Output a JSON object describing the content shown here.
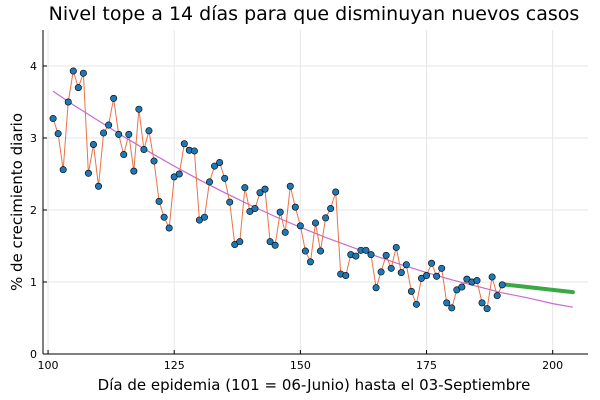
{
  "chart_data": {
    "type": "scatter",
    "title": "Nivel tope a 14 días para que disminuyan nuevos casos",
    "xlabel": "Día de epidemia (101 = 06-Junio) hasta el 03-Septiembre",
    "ylabel": "% de crecimiento diario",
    "xlim": [
      99,
      207
    ],
    "ylim": [
      0,
      4.5
    ],
    "xticks": [
      100,
      125,
      150,
      175,
      200
    ],
    "yticks": [
      0,
      1,
      2,
      3,
      4
    ],
    "grid": true,
    "legend": "none",
    "colors": {
      "points": "#1f77b4",
      "connecting_line": "#e8734a",
      "trend": "#c86ad0",
      "projection": "#3aa845"
    },
    "series": [
      {
        "kind": "observed",
        "x": [
          101,
          102,
          103,
          104,
          105,
          106,
          107,
          108,
          109,
          110,
          111,
          112,
          113,
          114,
          115,
          116,
          117,
          118,
          119,
          120,
          121,
          122,
          123,
          124,
          125,
          126,
          127,
          128,
          129,
          130,
          131,
          132,
          133,
          134,
          135,
          136,
          137,
          138,
          139,
          140,
          141,
          142,
          143,
          144,
          145,
          146,
          147,
          148,
          149,
          150,
          151,
          152,
          153,
          154,
          155,
          156,
          157,
          158,
          159,
          160,
          161,
          162,
          163,
          164,
          165,
          166,
          167,
          168,
          169,
          170,
          171,
          172,
          173,
          174,
          175,
          176,
          177,
          178,
          179,
          180,
          181,
          182,
          183,
          184,
          185,
          186,
          187,
          188,
          189,
          190
        ],
        "y": [
          3.27,
          3.06,
          2.56,
          3.5,
          3.93,
          3.7,
          3.9,
          2.51,
          2.91,
          2.33,
          3.07,
          3.18,
          3.55,
          3.05,
          2.77,
          3.05,
          2.54,
          3.4,
          2.84,
          3.1,
          2.68,
          2.12,
          1.9,
          1.75,
          2.46,
          2.5,
          2.92,
          2.83,
          2.82,
          1.86,
          1.9,
          2.39,
          2.61,
          2.66,
          2.44,
          2.11,
          1.52,
          1.56,
          2.31,
          1.98,
          2.02,
          2.24,
          2.29,
          1.56,
          1.51,
          1.97,
          1.69,
          2.33,
          2.04,
          1.78,
          1.43,
          1.28,
          1.82,
          1.43,
          1.89,
          2.02,
          2.25,
          1.11,
          1.09,
          1.38,
          1.36,
          1.44,
          1.44,
          1.38,
          0.92,
          1.14,
          1.37,
          1.19,
          1.48,
          1.13,
          1.24,
          0.87,
          0.69,
          1.05,
          1.09,
          1.26,
          1.08,
          1.19,
          0.71,
          0.64,
          0.89,
          0.93,
          1.04,
          1.0,
          1.02,
          0.71,
          0.63,
          1.07,
          0.81,
          0.96
        ]
      },
      {
        "kind": "trend",
        "x": [
          101,
          105,
          110,
          115,
          120,
          125,
          130,
          135,
          140,
          145,
          150,
          155,
          160,
          165,
          170,
          175,
          180,
          185,
          190,
          195,
          200,
          204
        ],
        "y": [
          3.65,
          3.46,
          3.24,
          3.02,
          2.81,
          2.61,
          2.42,
          2.24,
          2.07,
          1.91,
          1.76,
          1.62,
          1.49,
          1.36,
          1.24,
          1.13,
          1.03,
          0.94,
          0.85,
          0.78,
          0.7,
          0.65
        ]
      },
      {
        "kind": "projection",
        "x": [
          190,
          195,
          200,
          204
        ],
        "y": [
          0.97,
          0.93,
          0.89,
          0.86
        ]
      }
    ]
  }
}
